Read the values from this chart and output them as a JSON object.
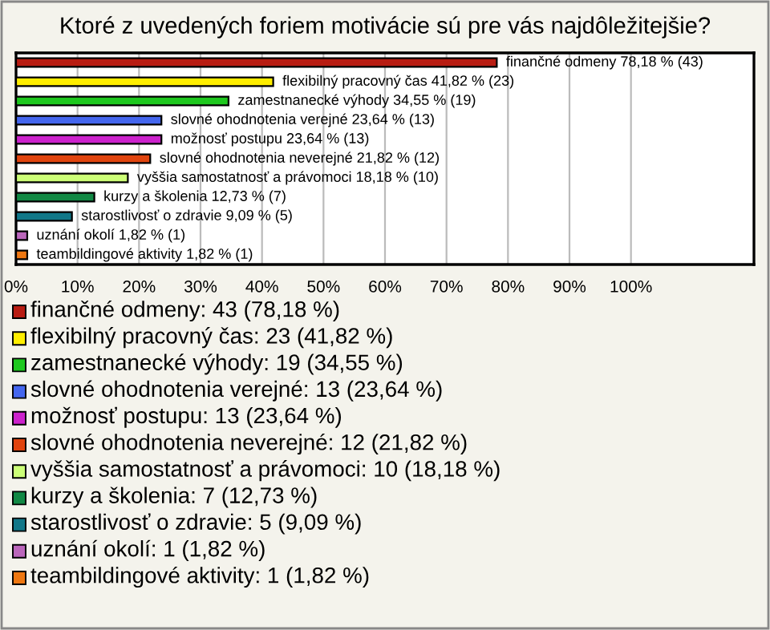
{
  "chart_data": {
    "type": "bar",
    "orientation": "horizontal",
    "title": "Ktoré z uvedených foriem motivácie sú pre vás najdôležitejšie?",
    "categories": [
      "finančné odmeny",
      "flexibilný pracovný čas",
      "zamestnanecké výhody",
      "slovné ohodnotenia verejné",
      "možnosť postupu",
      "slovné ohodnotenia neverejné",
      "vyššia samostatnosť a právomoci",
      "kurzy a školenia",
      "starostlivosť o zdravie",
      "uznání okolí",
      "teambildingové aktivity"
    ],
    "values": [
      78.18,
      41.82,
      34.55,
      23.64,
      23.64,
      21.82,
      18.18,
      12.73,
      9.09,
      1.82,
      1.82
    ],
    "value_labels": [
      "78,18 % (43)",
      "41,82 % (23)",
      "34,55 % (19)",
      "23,64 % (13)",
      "23,64 % (13)",
      "21,82 % (12)",
      "18,18 % (10)",
      "12,73 % (7)",
      "9,09 % (5)",
      "1,82 % (1)",
      "1,82 % (1)"
    ],
    "colors": [
      "#b81c12",
      "#ffee00",
      "#1ec81e",
      "#4466ee",
      "#cc22cc",
      "#e0440e",
      "#ccff77",
      "#118844",
      "#117788",
      "#bb66bb",
      "#ee7711"
    ],
    "xlim": [
      0,
      120
    ],
    "xticks": [
      {
        "value": 0,
        "label": "0%"
      },
      {
        "value": 10,
        "label": "10%"
      },
      {
        "value": 20,
        "label": "20%"
      },
      {
        "value": 30,
        "label": "30%"
      },
      {
        "value": 40,
        "label": "40%"
      },
      {
        "value": 50,
        "label": "50%"
      },
      {
        "value": 60,
        "label": "60%"
      },
      {
        "value": 70,
        "label": "70%"
      },
      {
        "value": 80,
        "label": "80%"
      },
      {
        "value": 90,
        "label": "90%"
      },
      {
        "value": 100,
        "label": "100%"
      }
    ],
    "grid": "x",
    "annotations": [
      "finančné odmeny: 43 (78,18 %)",
      "flexibilný pracovný čas: 23 (41,82 %)",
      "zamestnanecké výhody: 19 (34,55 %)",
      "slovné ohodnotenia verejné: 13 (23,64 %)",
      "možnosť postupu: 13 (23,64 %)",
      "slovné ohodnotenia neverejné: 12 (21,82 %)",
      "vyššia samostatnosť a právomoci: 10 (18,18 %)",
      "kurzy a školenia: 7 (12,73 %)",
      "starostlivosť o zdravie: 5 (9,09 %)",
      "uznání okolí: 1 (1,82 %)",
      "teambildingové aktivity: 1 (1,82 %)"
    ]
  }
}
